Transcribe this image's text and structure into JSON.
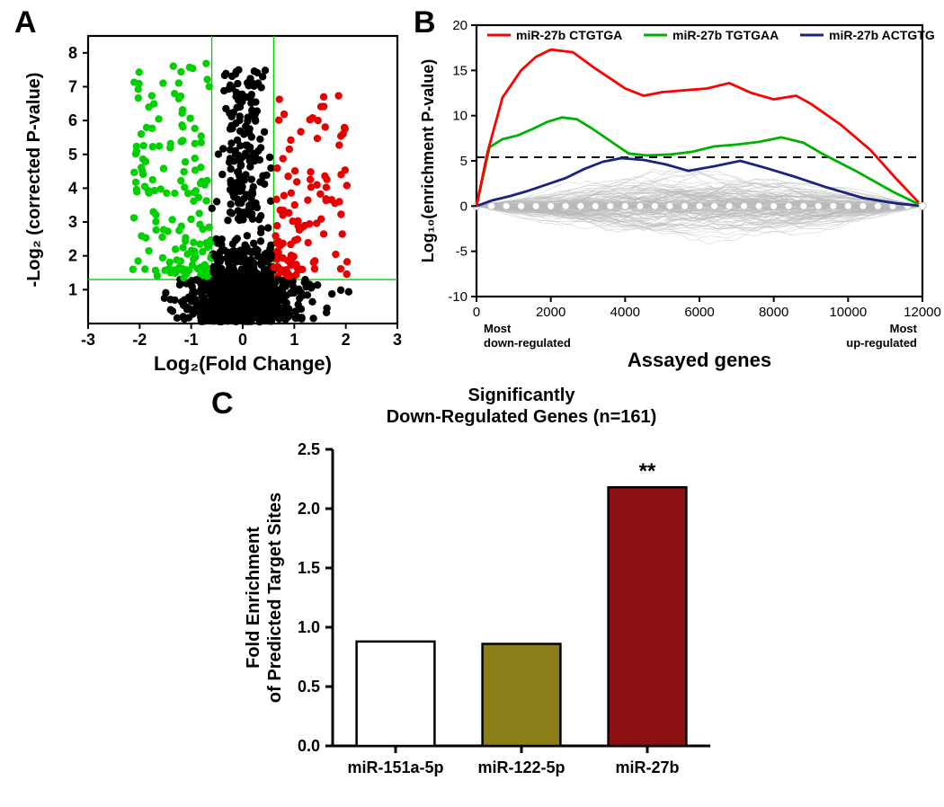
{
  "panelA": {
    "label": "A",
    "xlabel": "Log₂(Fold Change)",
    "ylabel": "-Log₂ (corrected P-value)",
    "xlim": [
      -3,
      3
    ],
    "ylim": [
      0,
      8.5
    ],
    "xticks": [
      -3,
      -2,
      -1,
      0,
      1,
      2,
      3
    ],
    "yticks": [
      1,
      2,
      3,
      4,
      5,
      6,
      7,
      8
    ],
    "vlines": [
      -0.6,
      0.6
    ],
    "hline": 1.3,
    "guide_color": "#00d000",
    "bg": "#ffffff",
    "point_r": 4.2,
    "colors": {
      "down": "#00d000",
      "up": "#e60000",
      "ns": "#000000"
    },
    "generated": true
  },
  "panelB": {
    "label": "B",
    "xlabel": "Assayed genes",
    "ylabel": "Log₁₀(enrichment P-value)",
    "annot_left": "Most\ndown-regulated",
    "annot_right": "Most\nup-regulated",
    "xlim": [
      0,
      12000
    ],
    "ylim": [
      -10,
      20
    ],
    "xticks": [
      0,
      2000,
      4000,
      6000,
      8000,
      10000,
      12000
    ],
    "yticks": [
      -10,
      -5,
      0,
      5,
      10,
      15,
      20
    ],
    "dashed_y": 5.4,
    "legend": [
      {
        "label": "miR-27b CTGTGA",
        "color": "#ff0000"
      },
      {
        "label": "miR-27b TGTGAA",
        "color": "#00b000"
      },
      {
        "label": "miR-27b ACTGTG",
        "color": "#1a237e"
      }
    ],
    "series": {
      "red": [
        [
          0,
          0
        ],
        [
          300,
          6
        ],
        [
          700,
          12
        ],
        [
          1200,
          15
        ],
        [
          1600,
          16.5
        ],
        [
          2000,
          17.3
        ],
        [
          2600,
          17
        ],
        [
          3200,
          15.2
        ],
        [
          4000,
          13
        ],
        [
          4500,
          12.2
        ],
        [
          5000,
          12.6
        ],
        [
          5600,
          12.8
        ],
        [
          6200,
          13
        ],
        [
          6800,
          13.6
        ],
        [
          7400,
          12.5
        ],
        [
          8000,
          11.8
        ],
        [
          8600,
          12.2
        ],
        [
          9000,
          11.3
        ],
        [
          9800,
          9
        ],
        [
          10600,
          6.2
        ],
        [
          11300,
          3
        ],
        [
          11900,
          0.4
        ]
      ],
      "green": [
        [
          0,
          0
        ],
        [
          350,
          6.5
        ],
        [
          700,
          7.4
        ],
        [
          1100,
          7.8
        ],
        [
          1500,
          8.5
        ],
        [
          1900,
          9.3
        ],
        [
          2300,
          9.8
        ],
        [
          2700,
          9.6
        ],
        [
          3100,
          8.6
        ],
        [
          3600,
          7.2
        ],
        [
          4100,
          5.8
        ],
        [
          4600,
          5.6
        ],
        [
          5200,
          5.7
        ],
        [
          5800,
          6.0
        ],
        [
          6400,
          6.6
        ],
        [
          7000,
          6.8
        ],
        [
          7600,
          7.1
        ],
        [
          8200,
          7.6
        ],
        [
          8800,
          7.0
        ],
        [
          9300,
          5.8
        ],
        [
          10200,
          3.9
        ],
        [
          11200,
          1.6
        ],
        [
          11900,
          0.2
        ]
      ],
      "blue": [
        [
          0,
          0
        ],
        [
          400,
          0.6
        ],
        [
          900,
          1.1
        ],
        [
          1400,
          1.7
        ],
        [
          1900,
          2.4
        ],
        [
          2400,
          3.1
        ],
        [
          2900,
          4.1
        ],
        [
          3400,
          4.9
        ],
        [
          3900,
          5.3
        ],
        [
          4500,
          5.1
        ],
        [
          5100,
          4.6
        ],
        [
          5700,
          3.9
        ],
        [
          6400,
          4.4
        ],
        [
          7100,
          5.0
        ],
        [
          7800,
          4.2
        ],
        [
          8600,
          3.2
        ],
        [
          9400,
          2.1
        ],
        [
          10400,
          0.9
        ],
        [
          11300,
          0.3
        ],
        [
          11900,
          0.05
        ]
      ]
    },
    "line_width": 2.8,
    "grey_lines": 140,
    "grey_color": "#b8b8b8",
    "dot_row_color": "#ffffff",
    "dot_row_stroke": "#bfbfbf"
  },
  "panelC": {
    "label": "C",
    "title1": "Significantly",
    "title2": "Down-Regulated Genes (n=161)",
    "ylabel": "Fold  Enrichment\nof Predicted Target Sites",
    "ylim": [
      0,
      2.5
    ],
    "yticks": [
      0.0,
      0.5,
      1.0,
      1.5,
      2.0,
      2.5
    ],
    "bars": [
      {
        "label": "miR-151a-5p",
        "value": 0.88,
        "fill": "#ffffff",
        "stroke": "#000000"
      },
      {
        "label": "miR-122-5p",
        "value": 0.86,
        "fill": "#8a7d1a",
        "stroke": "#000000"
      },
      {
        "label": "miR-27b",
        "value": 2.18,
        "fill": "#8a1012",
        "stroke": "#000000",
        "annot": "**"
      }
    ],
    "axis_color": "#000000",
    "tick_fontsize": 18,
    "label_fontsize": 20,
    "bar_width": 0.62
  }
}
